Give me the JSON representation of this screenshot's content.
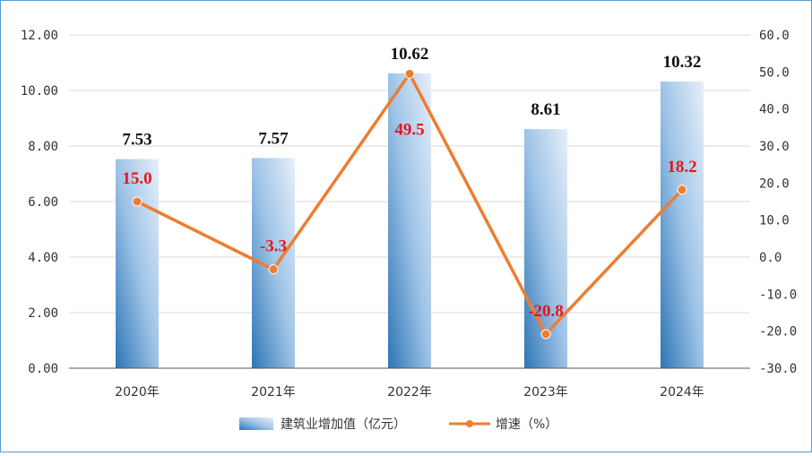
{
  "chart_data": {
    "type": "bar+line",
    "categories": [
      "2020年",
      "2021年",
      "2022年",
      "2023年",
      "2024年"
    ],
    "series": [
      {
        "name": "建筑业增加值（亿元）",
        "type": "bar",
        "axis": "left",
        "values": [
          7.53,
          7.57,
          10.62,
          8.61,
          10.32
        ],
        "labels": [
          "7.53",
          "7.57",
          "10.62",
          "8.61",
          "10.32"
        ]
      },
      {
        "name": "增速（%）",
        "type": "line",
        "axis": "right",
        "values": [
          15.0,
          -3.3,
          49.5,
          -20.8,
          18.2
        ],
        "labels": [
          "15.0",
          "-3.3",
          "49.5",
          "-20.8",
          "18.2"
        ]
      }
    ],
    "y_left": {
      "ylim": [
        0,
        12
      ],
      "ticks": [
        "0.00",
        "2.00",
        "4.00",
        "6.00",
        "8.00",
        "10.00",
        "12.00"
      ]
    },
    "y_right": {
      "ylim": [
        -30,
        60
      ],
      "ticks": [
        "-30.0",
        "-20.0",
        "-10.0",
        "0.0",
        "10.0",
        "20.0",
        "30.0",
        "40.0",
        "50.0",
        "60.0"
      ]
    },
    "grid": true,
    "legend": "bottom-center",
    "colors": {
      "bar_top": "#e6eff9",
      "bar_bottom": "#2e75b6",
      "line": "#ed7d31",
      "line_label": "#e8151b",
      "grid": "#d9d9d9",
      "axis": "#595959"
    }
  }
}
